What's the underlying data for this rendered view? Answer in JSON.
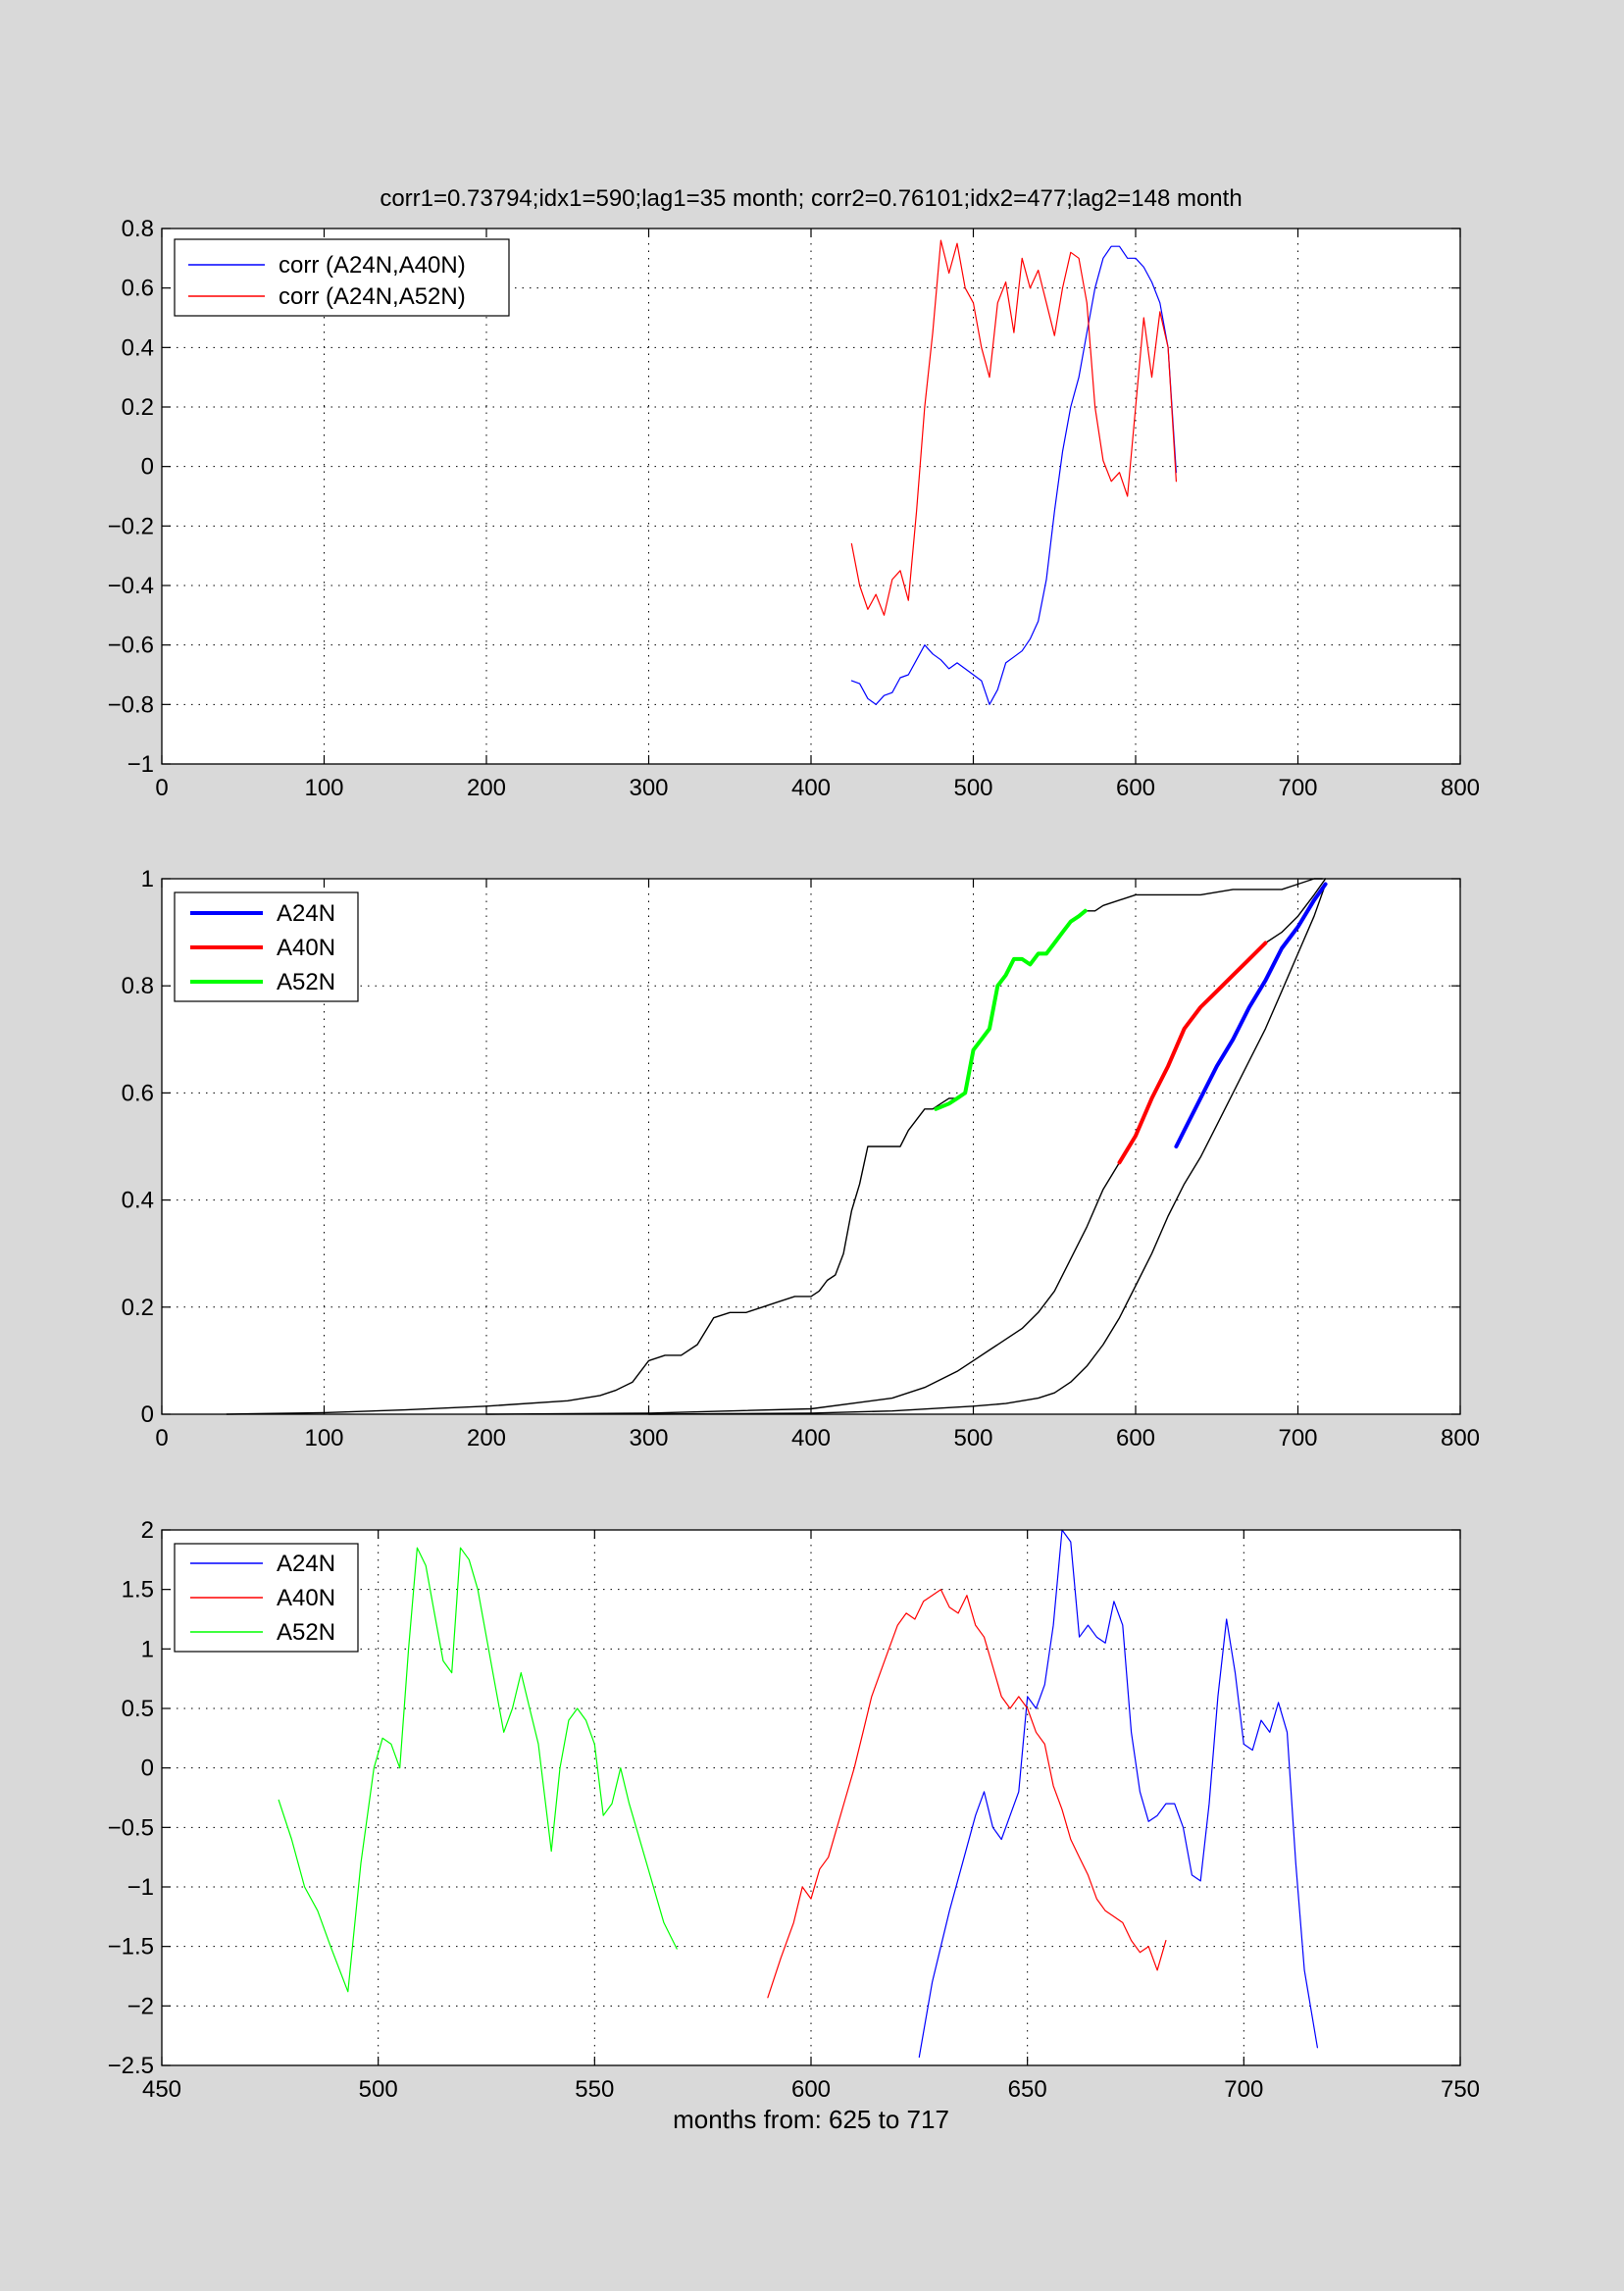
{
  "figure": {
    "background": "#d9d9d9",
    "axes_background": "#ffffff"
  },
  "chart_data": [
    {
      "type": "line",
      "title": "corr1=0.73794;idx1=590;lag1=35 month;   corr2=0.76101;idx2=477;lag2=148 month",
      "xlabel": "",
      "ylabel": "",
      "xlim": [
        0,
        800
      ],
      "ylim": [
        -1,
        0.8
      ],
      "xticks": [
        0,
        100,
        200,
        300,
        400,
        500,
        600,
        700,
        800
      ],
      "yticks": [
        -1,
        -0.8,
        -0.6,
        -0.4,
        -0.2,
        0,
        0.2,
        0.4,
        0.6,
        0.8
      ],
      "grid": true,
      "legend": "top-left",
      "series": [
        {
          "name": "corr (A24N,A40N)",
          "color": "#0000ff",
          "line_width": 1.2,
          "x": [
            425,
            430,
            435,
            440,
            445,
            450,
            455,
            460,
            465,
            470,
            475,
            480,
            485,
            490,
            495,
            500,
            505,
            510,
            515,
            520,
            525,
            530,
            535,
            540,
            545,
            550,
            555,
            560,
            565,
            570,
            575,
            580,
            585,
            590,
            595,
            600,
            605,
            610,
            615,
            620,
            625
          ],
          "y": [
            -0.72,
            -0.73,
            -0.78,
            -0.8,
            -0.77,
            -0.76,
            -0.71,
            -0.7,
            -0.65,
            -0.6,
            -0.63,
            -0.65,
            -0.68,
            -0.66,
            -0.68,
            -0.7,
            -0.72,
            -0.8,
            -0.75,
            -0.66,
            -0.64,
            -0.62,
            -0.58,
            -0.52,
            -0.38,
            -0.15,
            0.05,
            0.2,
            0.3,
            0.45,
            0.6,
            0.7,
            0.74,
            0.74,
            0.7,
            0.7,
            0.67,
            0.62,
            0.55,
            0.4,
            -0.02
          ]
        },
        {
          "name": "corr (A24N,A52N)",
          "color": "#ff0000",
          "line_width": 1.2,
          "x": [
            425,
            430,
            435,
            440,
            445,
            450,
            455,
            460,
            465,
            470,
            475,
            480,
            485,
            490,
            495,
            500,
            505,
            510,
            515,
            520,
            525,
            530,
            535,
            540,
            545,
            550,
            555,
            560,
            565,
            570,
            575,
            580,
            585,
            590,
            595,
            600,
            605,
            610,
            615,
            620,
            625
          ],
          "y": [
            -0.26,
            -0.4,
            -0.48,
            -0.43,
            -0.5,
            -0.38,
            -0.35,
            -0.45,
            -0.15,
            0.2,
            0.45,
            0.76,
            0.65,
            0.75,
            0.6,
            0.55,
            0.4,
            0.3,
            0.55,
            0.62,
            0.45,
            0.7,
            0.6,
            0.66,
            0.55,
            0.44,
            0.6,
            0.72,
            0.7,
            0.55,
            0.2,
            0.02,
            -0.05,
            -0.02,
            -0.1,
            0.2,
            0.5,
            0.3,
            0.52,
            0.4,
            -0.05
          ]
        }
      ]
    },
    {
      "type": "line",
      "title": "",
      "xlabel": "",
      "ylabel": "",
      "xlim": [
        0,
        800
      ],
      "ylim": [
        0,
        1
      ],
      "xticks": [
        0,
        100,
        200,
        300,
        400,
        500,
        600,
        700,
        800
      ],
      "yticks": [
        0,
        0.2,
        0.4,
        0.6,
        0.8,
        1
      ],
      "grid": true,
      "legend": "top-left",
      "legend_entries": [
        {
          "name": "A24N",
          "color": "#0000ff",
          "line_width": 4
        },
        {
          "name": "A40N",
          "color": "#ff0000",
          "line_width": 4
        },
        {
          "name": "A52N",
          "color": "#00ff00",
          "line_width": 4
        }
      ],
      "series": [
        {
          "color": "#000000",
          "line_width": 1.4,
          "x": [
            40,
            100,
            150,
            200,
            250,
            270,
            280,
            290,
            300,
            310,
            320,
            330,
            340,
            350,
            360,
            370,
            380,
            390,
            400,
            405,
            410,
            415,
            420,
            425,
            430,
            435,
            440,
            445,
            450,
            455,
            460,
            465,
            470,
            475,
            480,
            485,
            490,
            495,
            500,
            505,
            510,
            515,
            520,
            525,
            530,
            535,
            540,
            545,
            550,
            555,
            560,
            565,
            570,
            575,
            580,
            600,
            620,
            640,
            660,
            680,
            690,
            700,
            710,
            715
          ],
          "y": [
            0.0,
            0.003,
            0.008,
            0.015,
            0.025,
            0.035,
            0.045,
            0.06,
            0.1,
            0.11,
            0.11,
            0.13,
            0.18,
            0.19,
            0.19,
            0.2,
            0.21,
            0.22,
            0.22,
            0.23,
            0.25,
            0.26,
            0.3,
            0.38,
            0.43,
            0.5,
            0.5,
            0.5,
            0.5,
            0.5,
            0.53,
            0.55,
            0.57,
            0.57,
            0.58,
            0.59,
            0.59,
            0.6,
            0.68,
            0.7,
            0.72,
            0.8,
            0.82,
            0.85,
            0.85,
            0.84,
            0.86,
            0.86,
            0.88,
            0.9,
            0.92,
            0.93,
            0.94,
            0.94,
            0.95,
            0.97,
            0.97,
            0.97,
            0.98,
            0.98,
            0.98,
            0.99,
            1.0,
            1.0
          ]
        },
        {
          "color": "#00ff00",
          "line_width": 4,
          "x": [
            477,
            485,
            490,
            495,
            500,
            505,
            510,
            515,
            520,
            525,
            530,
            535,
            540,
            545,
            550,
            555,
            560,
            565,
            569
          ],
          "y": [
            0.57,
            0.58,
            0.59,
            0.6,
            0.68,
            0.7,
            0.72,
            0.8,
            0.82,
            0.85,
            0.85,
            0.84,
            0.86,
            0.86,
            0.88,
            0.9,
            0.92,
            0.93,
            0.94
          ]
        },
        {
          "color": "#000000",
          "line_width": 1.4,
          "x": [
            200,
            300,
            400,
            450,
            470,
            490,
            500,
            510,
            520,
            530,
            540,
            550,
            560,
            570,
            580,
            590,
            600,
            610,
            620,
            630,
            640,
            650,
            660,
            670,
            680,
            690,
            700,
            710,
            717
          ],
          "y": [
            0.0,
            0.002,
            0.01,
            0.03,
            0.05,
            0.08,
            0.1,
            0.12,
            0.14,
            0.16,
            0.19,
            0.23,
            0.29,
            0.35,
            0.42,
            0.47,
            0.52,
            0.59,
            0.65,
            0.72,
            0.76,
            0.79,
            0.82,
            0.85,
            0.88,
            0.9,
            0.93,
            0.97,
            1.0
          ]
        },
        {
          "color": "#ff0000",
          "line_width": 4,
          "x": [
            590,
            600,
            610,
            620,
            630,
            640,
            650,
            660,
            670,
            680
          ],
          "y": [
            0.47,
            0.52,
            0.59,
            0.65,
            0.72,
            0.76,
            0.79,
            0.82,
            0.85,
            0.88
          ]
        },
        {
          "color": "#000000",
          "line_width": 1.4,
          "x": [
            300,
            400,
            450,
            500,
            520,
            540,
            550,
            560,
            570,
            580,
            590,
            600,
            610,
            620,
            625,
            630,
            640,
            650,
            660,
            670,
            680,
            690,
            700,
            710,
            717
          ],
          "y": [
            0.0,
            0.002,
            0.006,
            0.015,
            0.02,
            0.03,
            0.04,
            0.06,
            0.09,
            0.13,
            0.18,
            0.24,
            0.3,
            0.37,
            0.4,
            0.43,
            0.48,
            0.54,
            0.6,
            0.66,
            0.72,
            0.79,
            0.86,
            0.93,
            0.99
          ]
        },
        {
          "color": "#0000ff",
          "line_width": 4,
          "x": [
            625,
            630,
            640,
            650,
            660,
            670,
            680,
            690,
            700,
            710,
            717
          ],
          "y": [
            0.5,
            0.53,
            0.59,
            0.65,
            0.7,
            0.76,
            0.81,
            0.87,
            0.91,
            0.96,
            0.99
          ]
        }
      ]
    },
    {
      "type": "line",
      "title": "",
      "xlabel": "months from: 625 to 717",
      "ylabel": "",
      "xlim": [
        450,
        750
      ],
      "ylim": [
        -2.5,
        2
      ],
      "xticks": [
        450,
        500,
        550,
        600,
        650,
        700,
        750
      ],
      "yticks": [
        -2.5,
        -2,
        -1.5,
        -1,
        -0.5,
        0,
        0.5,
        1,
        1.5,
        2
      ],
      "grid": true,
      "legend": "top-left",
      "series": [
        {
          "name": "A24N",
          "color": "#0000ff",
          "line_width": 1.2,
          "x": [
            625,
            628,
            630,
            632,
            635,
            638,
            640,
            642,
            644,
            646,
            648,
            650,
            652,
            654,
            656,
            658,
            660,
            662,
            664,
            666,
            668,
            670,
            672,
            674,
            676,
            678,
            680,
            682,
            684,
            686,
            688,
            690,
            692,
            694,
            696,
            698,
            700,
            702,
            704,
            706,
            708,
            710,
            712,
            714,
            717
          ],
          "y": [
            -2.43,
            -1.8,
            -1.5,
            -1.2,
            -0.8,
            -0.4,
            -0.2,
            -0.5,
            -0.6,
            -0.4,
            -0.2,
            0.6,
            0.5,
            0.7,
            1.2,
            2.0,
            1.9,
            1.1,
            1.2,
            1.1,
            1.05,
            1.4,
            1.2,
            0.3,
            -0.2,
            -0.45,
            -0.4,
            -0.3,
            -0.3,
            -0.5,
            -0.9,
            -0.95,
            -0.3,
            0.6,
            1.25,
            0.8,
            0.2,
            0.15,
            0.4,
            0.3,
            0.55,
            0.3,
            -0.8,
            -1.7,
            -2.35
          ]
        },
        {
          "name": "A40N",
          "color": "#ff0000",
          "line_width": 1.2,
          "x": [
            590,
            593,
            596,
            598,
            600,
            602,
            604,
            606,
            608,
            610,
            612,
            614,
            616,
            618,
            620,
            622,
            624,
            626,
            628,
            630,
            632,
            634,
            636,
            638,
            640,
            642,
            644,
            646,
            648,
            650,
            652,
            654,
            656,
            658,
            660,
            662,
            664,
            666,
            668,
            670,
            672,
            674,
            676,
            678,
            680,
            682
          ],
          "y": [
            -1.93,
            -1.6,
            -1.3,
            -1.0,
            -1.1,
            -0.85,
            -0.75,
            -0.5,
            -0.25,
            0.0,
            0.3,
            0.6,
            0.8,
            1.0,
            1.2,
            1.3,
            1.25,
            1.4,
            1.45,
            1.5,
            1.35,
            1.3,
            1.45,
            1.2,
            1.1,
            0.85,
            0.6,
            0.5,
            0.6,
            0.5,
            0.3,
            0.2,
            -0.15,
            -0.35,
            -0.6,
            -0.75,
            -0.9,
            -1.1,
            -1.2,
            -1.25,
            -1.3,
            -1.45,
            -1.55,
            -1.5,
            -1.7,
            -1.45
          ]
        },
        {
          "name": "A52N",
          "color": "#00ff00",
          "line_width": 1.2,
          "x": [
            477,
            480,
            483,
            486,
            489,
            493,
            496,
            499,
            501,
            503,
            505,
            507,
            509,
            511,
            513,
            515,
            517,
            519,
            521,
            523,
            525,
            527,
            529,
            531,
            533,
            535,
            537,
            540,
            542,
            544,
            546,
            548,
            550,
            552,
            554,
            556,
            558,
            560,
            562,
            564,
            566,
            569
          ],
          "y": [
            -0.27,
            -0.6,
            -1.0,
            -1.2,
            -1.5,
            -1.88,
            -0.8,
            0.0,
            0.25,
            0.2,
            0.0,
            1.0,
            1.85,
            1.7,
            1.3,
            0.9,
            0.8,
            1.85,
            1.75,
            1.5,
            1.1,
            0.7,
            0.3,
            0.5,
            0.8,
            0.5,
            0.2,
            -0.7,
            0.0,
            0.4,
            0.5,
            0.4,
            0.2,
            -0.4,
            -0.3,
            0.0,
            -0.3,
            -0.55,
            -0.8,
            -1.05,
            -1.3,
            -1.52
          ]
        }
      ]
    }
  ]
}
